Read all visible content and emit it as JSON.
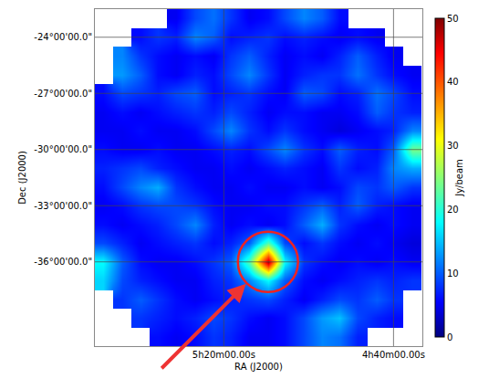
{
  "chart_data": {
    "type": "heatmap",
    "xlabel": "RA (J2000)",
    "ylabel": "Dec (J2000)",
    "x": [
      87.1,
      86.0,
      84.9,
      83.9,
      82.8,
      81.7,
      80.6,
      79.6,
      78.5,
      77.4,
      76.4,
      75.3,
      74.2,
      73.2,
      72.1,
      71.0,
      70.0,
      68.9
    ],
    "y": [
      -23,
      -24,
      -25,
      -26,
      -27,
      -28,
      -29,
      -30,
      -31,
      -32,
      -33,
      -34,
      -35,
      -36,
      -37,
      -38,
      -39,
      -40
    ],
    "cells": [
      [
        null,
        null,
        null,
        null,
        5,
        9,
        11,
        8,
        5,
        6,
        9,
        12,
        10,
        6,
        null,
        null,
        null,
        null
      ],
      [
        null,
        null,
        6,
        8,
        7,
        12,
        10,
        6,
        7,
        8,
        6,
        7,
        6,
        5,
        6,
        5,
        null,
        null
      ],
      [
        null,
        12,
        8,
        6,
        5,
        6,
        5,
        8,
        10,
        7,
        5,
        6,
        5,
        7,
        10,
        7,
        5,
        null
      ],
      [
        null,
        13,
        10,
        6,
        5,
        7,
        6,
        9,
        12,
        8,
        5,
        7,
        8,
        8,
        11,
        8,
        6,
        5
      ],
      [
        6,
        9,
        8,
        7,
        9,
        10,
        6,
        7,
        8,
        6,
        5,
        10,
        9,
        6,
        7,
        11,
        9,
        6
      ],
      [
        5,
        6,
        5,
        6,
        7,
        8,
        7,
        9,
        7,
        5,
        6,
        6,
        5,
        5,
        6,
        10,
        8,
        7
      ],
      [
        5,
        5,
        6,
        5,
        5,
        6,
        9,
        12,
        8,
        6,
        8,
        6,
        5,
        4,
        5,
        6,
        7,
        12
      ],
      [
        6,
        5,
        5,
        6,
        5,
        5,
        6,
        7,
        6,
        9,
        12,
        8,
        6,
        10,
        7,
        6,
        10,
        24
      ],
      [
        7,
        8,
        9,
        7,
        6,
        5,
        5,
        6,
        5,
        6,
        7,
        6,
        5,
        8,
        6,
        7,
        12,
        14
      ],
      [
        6,
        9,
        12,
        14,
        8,
        6,
        5,
        5,
        6,
        5,
        5,
        6,
        5,
        6,
        9,
        8,
        10,
        8
      ],
      [
        5,
        6,
        8,
        9,
        9,
        8,
        6,
        5,
        5,
        6,
        6,
        8,
        10,
        7,
        10,
        7,
        6,
        5
      ],
      [
        6,
        5,
        6,
        7,
        9,
        12,
        7,
        5,
        6,
        5,
        6,
        10,
        14,
        8,
        6,
        5,
        6,
        5
      ],
      [
        9,
        7,
        5,
        6,
        7,
        8,
        6,
        7,
        10,
        22,
        9,
        6,
        8,
        6,
        5,
        6,
        5,
        4
      ],
      [
        18,
        10,
        6,
        5,
        5,
        6,
        8,
        10,
        22,
        48,
        18,
        8,
        6,
        5,
        6,
        5,
        6,
        5
      ],
      [
        16,
        9,
        7,
        6,
        5,
        5,
        7,
        8,
        12,
        18,
        10,
        6,
        5,
        6,
        7,
        8,
        7,
        8
      ],
      [
        null,
        8,
        10,
        8,
        6,
        5,
        6,
        7,
        8,
        9,
        7,
        5,
        7,
        9,
        8,
        10,
        8,
        null
      ],
      [
        null,
        null,
        8,
        7,
        6,
        7,
        9,
        8,
        6,
        5,
        6,
        9,
        13,
        15,
        9,
        7,
        6,
        null
      ],
      [
        null,
        null,
        null,
        6,
        5,
        6,
        8,
        7,
        5,
        5,
        6,
        9,
        12,
        11,
        7,
        null,
        null,
        null
      ]
    ],
    "xlim": [
      87.6,
      68.3
    ],
    "ylim": [
      -40.5,
      -22.5
    ],
    "xticks": [
      {
        "value": 80,
        "label": "5h20m00.00s"
      },
      {
        "value": 70,
        "label": "4h40m00.00s"
      }
    ],
    "yticks": [
      {
        "value": -24,
        "label": "-24°00'00.0\""
      },
      {
        "value": -27,
        "label": "-27°00'00.0\""
      },
      {
        "value": -30,
        "label": "-30°00'00.0\""
      },
      {
        "value": -33,
        "label": "-33°00'00.0\""
      },
      {
        "value": -36,
        "label": "-36°00'00.0\""
      }
    ],
    "grid": true,
    "colorbar": {
      "title": "Jy/beam",
      "range": [
        0,
        50
      ],
      "ticks": [
        0,
        10,
        20,
        30,
        40,
        50
      ]
    }
  }
}
